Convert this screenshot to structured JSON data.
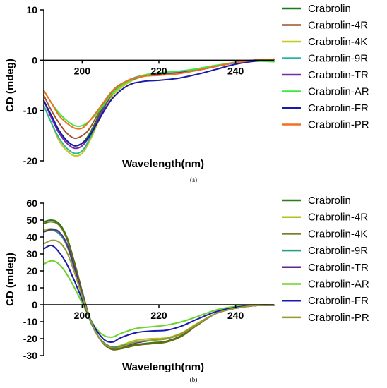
{
  "chart_data": [
    {
      "type": "line",
      "panel_label": "(a)",
      "xlabel": "Wavelength(nm)",
      "ylabel": "CD (mdeg)",
      "xlim": [
        190,
        250
      ],
      "ylim": [
        -20,
        10
      ],
      "xticks": [
        200,
        220,
        240
      ],
      "yticks": [
        10,
        0,
        -10,
        -20
      ],
      "grid": false,
      "legend_position": "right",
      "series": [
        {
          "name": "Crabrolin",
          "color": "#1a7a1a",
          "x": [
            190,
            192,
            194,
            196,
            198,
            200,
            202,
            205,
            208,
            212,
            216,
            220,
            225,
            230,
            235,
            240,
            245,
            250
          ],
          "y": [
            -8,
            -11,
            -14,
            -16,
            -17,
            -16.5,
            -14.5,
            -10,
            -6,
            -4,
            -3,
            -2.8,
            -2.5,
            -2,
            -1.2,
            -0.5,
            0,
            0.2
          ]
        },
        {
          "name": "Crabrolin-4R",
          "color": "#a0522d",
          "x": [
            190,
            192,
            194,
            196,
            198,
            200,
            202,
            205,
            208,
            212,
            216,
            220,
            225,
            230,
            235,
            240,
            245,
            250
          ],
          "y": [
            -7,
            -10,
            -12.5,
            -14.5,
            -15.5,
            -15,
            -13.5,
            -9.5,
            -6,
            -4,
            -3,
            -2.7,
            -2.5,
            -2,
            -1.2,
            -0.5,
            0,
            0.2
          ]
        },
        {
          "name": "Crabrolin-4K",
          "color": "#c8c81e",
          "x": [
            190,
            192,
            194,
            196,
            198,
            200,
            202,
            205,
            208,
            212,
            216,
            220,
            225,
            230,
            235,
            240,
            245,
            250
          ],
          "y": [
            -9,
            -12.5,
            -16,
            -18,
            -19,
            -18.5,
            -16,
            -11,
            -7,
            -4.5,
            -3.2,
            -2.8,
            -2.5,
            -2,
            -1.2,
            -0.5,
            0,
            0.1
          ]
        },
        {
          "name": "Crabrolin-9R",
          "color": "#2ab5a0",
          "x": [
            190,
            192,
            194,
            196,
            198,
            200,
            202,
            205,
            208,
            212,
            216,
            220,
            225,
            230,
            235,
            240,
            245,
            250
          ],
          "y": [
            -9,
            -12.5,
            -15.5,
            -17.5,
            -18.5,
            -18,
            -15.5,
            -10.5,
            -6.5,
            -4,
            -3,
            -2.5,
            -2.3,
            -1.8,
            -1.1,
            -0.4,
            0,
            0.1
          ]
        },
        {
          "name": "Crabrolin-TR",
          "color": "#7b2aa8",
          "x": [
            190,
            192,
            194,
            196,
            198,
            200,
            202,
            205,
            208,
            212,
            216,
            220,
            225,
            230,
            235,
            240,
            245,
            250
          ],
          "y": [
            -8,
            -11.5,
            -14.5,
            -16.5,
            -17.5,
            -17,
            -15,
            -10.5,
            -6.5,
            -4.2,
            -3.2,
            -2.8,
            -2.5,
            -2,
            -1.2,
            -0.5,
            0,
            0.2
          ]
        },
        {
          "name": "Crabrolin-AR",
          "color": "#3de83d",
          "x": [
            190,
            192,
            194,
            196,
            198,
            200,
            202,
            205,
            208,
            212,
            216,
            220,
            225,
            230,
            235,
            240,
            245,
            250
          ],
          "y": [
            -6,
            -8.5,
            -10.5,
            -12,
            -13,
            -13,
            -12,
            -9.5,
            -6.5,
            -4.2,
            -3,
            -2.5,
            -2.2,
            -1.7,
            -1,
            -0.5,
            -0.2,
            -0.3
          ]
        },
        {
          "name": "Crabrolin-FR",
          "color": "#1a1aa8",
          "x": [
            190,
            192,
            194,
            196,
            198,
            200,
            202,
            205,
            208,
            212,
            216,
            220,
            225,
            230,
            235,
            240,
            245,
            250
          ],
          "y": [
            -8,
            -11,
            -14,
            -16,
            -17,
            -16.5,
            -15,
            -11,
            -7.5,
            -5,
            -4.2,
            -4,
            -3.6,
            -2.8,
            -1.8,
            -0.8,
            -0.2,
            0.1
          ]
        },
        {
          "name": "Crabrolin-PR",
          "color": "#f07020",
          "x": [
            190,
            192,
            194,
            196,
            198,
            200,
            202,
            205,
            208,
            212,
            216,
            220,
            225,
            230,
            235,
            240,
            245,
            250
          ],
          "y": [
            -6,
            -8.5,
            -11,
            -12.5,
            -13.5,
            -13.5,
            -12,
            -9,
            -6,
            -4,
            -3.2,
            -3,
            -2.7,
            -2,
            -1.2,
            -0.5,
            0,
            0.2
          ]
        }
      ]
    },
    {
      "type": "line",
      "panel_label": "(b)",
      "xlabel": "Wavelength(nm)",
      "ylabel": "CD (mdeg)",
      "xlim": [
        190,
        250
      ],
      "ylim": [
        -30,
        60
      ],
      "xticks": [
        200,
        220,
        240
      ],
      "yticks": [
        60,
        50,
        40,
        30,
        20,
        10,
        0,
        -10,
        -20,
        -30
      ],
      "grid": false,
      "legend_position": "right",
      "series": [
        {
          "name": "Crabrolin",
          "color": "#2e7d1a",
          "x": [
            190,
            192,
            194,
            196,
            198,
            200,
            202,
            204,
            206,
            208,
            210,
            214,
            218,
            222,
            226,
            230,
            235,
            240,
            245,
            250
          ],
          "y": [
            49,
            50,
            48,
            40,
            25,
            8,
            -8,
            -18,
            -24,
            -26,
            -25.5,
            -23.5,
            -22.5,
            -21.5,
            -18,
            -12,
            -5,
            -2,
            -0.5,
            -0.3
          ]
        },
        {
          "name": "Crabrolin-4R",
          "color": "#b5c21e",
          "x": [
            190,
            192,
            194,
            196,
            198,
            200,
            202,
            204,
            206,
            208,
            210,
            214,
            218,
            222,
            226,
            230,
            235,
            240,
            245,
            250
          ],
          "y": [
            44,
            45,
            43,
            36,
            22,
            6,
            -8,
            -18,
            -23,
            -25,
            -24,
            -21,
            -20,
            -19.5,
            -16.5,
            -11,
            -5,
            -2,
            -0.5,
            -0.3
          ]
        },
        {
          "name": "Crabrolin-4K",
          "color": "#6b6b10",
          "x": [
            190,
            192,
            194,
            196,
            198,
            200,
            202,
            204,
            206,
            208,
            210,
            214,
            218,
            222,
            226,
            230,
            235,
            240,
            245,
            250
          ],
          "y": [
            48,
            49,
            47,
            39,
            24,
            7,
            -8,
            -18,
            -24,
            -26.5,
            -26,
            -24,
            -23,
            -22,
            -18.5,
            -12,
            -5,
            -2,
            -0.5,
            -0.3
          ]
        },
        {
          "name": "Crabrolin-9R",
          "color": "#2a9a8a",
          "x": [
            190,
            192,
            194,
            196,
            198,
            200,
            202,
            204,
            206,
            208,
            210,
            214,
            218,
            222,
            226,
            230,
            235,
            240,
            245,
            250
          ],
          "y": [
            43,
            44,
            42,
            35,
            21,
            5,
            -9,
            -18,
            -23,
            -25,
            -24.5,
            -22,
            -21,
            -20,
            -17,
            -11.5,
            -5,
            -2,
            -0.5,
            -0.3
          ]
        },
        {
          "name": "Crabrolin-TR",
          "color": "#5a2a90",
          "x": [
            190,
            192,
            194,
            196,
            198,
            200,
            202,
            204,
            206,
            208,
            210,
            214,
            218,
            222,
            226,
            230,
            235,
            240,
            245,
            250
          ],
          "y": [
            43,
            44.5,
            43,
            36,
            22,
            6,
            -8,
            -18,
            -23.5,
            -25.5,
            -25,
            -22.5,
            -21,
            -20,
            -17,
            -11.5,
            -5,
            -2,
            -0.5,
            -0.3
          ]
        },
        {
          "name": "Crabrolin-AR",
          "color": "#6ad42a",
          "x": [
            190,
            192,
            194,
            196,
            198,
            200,
            202,
            204,
            206,
            208,
            210,
            214,
            218,
            222,
            226,
            230,
            235,
            240,
            245,
            250
          ],
          "y": [
            24,
            26,
            24,
            18,
            10,
            1,
            -8,
            -15,
            -18.5,
            -19,
            -17,
            -14,
            -13,
            -12,
            -10,
            -7,
            -3,
            -1,
            -0.3,
            -0.2
          ]
        },
        {
          "name": "Crabrolin-FR",
          "color": "#1a1ab0",
          "x": [
            190,
            192,
            194,
            196,
            198,
            200,
            202,
            204,
            206,
            208,
            210,
            214,
            218,
            222,
            226,
            230,
            235,
            240,
            245,
            250
          ],
          "y": [
            33,
            35,
            31,
            24,
            14,
            3,
            -8,
            -16,
            -21,
            -22,
            -19.5,
            -16.5,
            -15.5,
            -15,
            -12.5,
            -8.5,
            -4,
            -1.5,
            -0.3,
            -0.2
          ]
        },
        {
          "name": "Crabrolin-PR",
          "color": "#9a9a30",
          "x": [
            190,
            192,
            194,
            196,
            198,
            200,
            202,
            204,
            206,
            208,
            210,
            214,
            218,
            222,
            226,
            230,
            235,
            240,
            245,
            250
          ],
          "y": [
            36,
            38,
            37,
            31,
            19,
            5,
            -8,
            -18,
            -23.5,
            -25.5,
            -25,
            -22,
            -21,
            -20,
            -17,
            -11.5,
            -5,
            -2,
            -0.5,
            -0.3
          ]
        }
      ]
    }
  ]
}
